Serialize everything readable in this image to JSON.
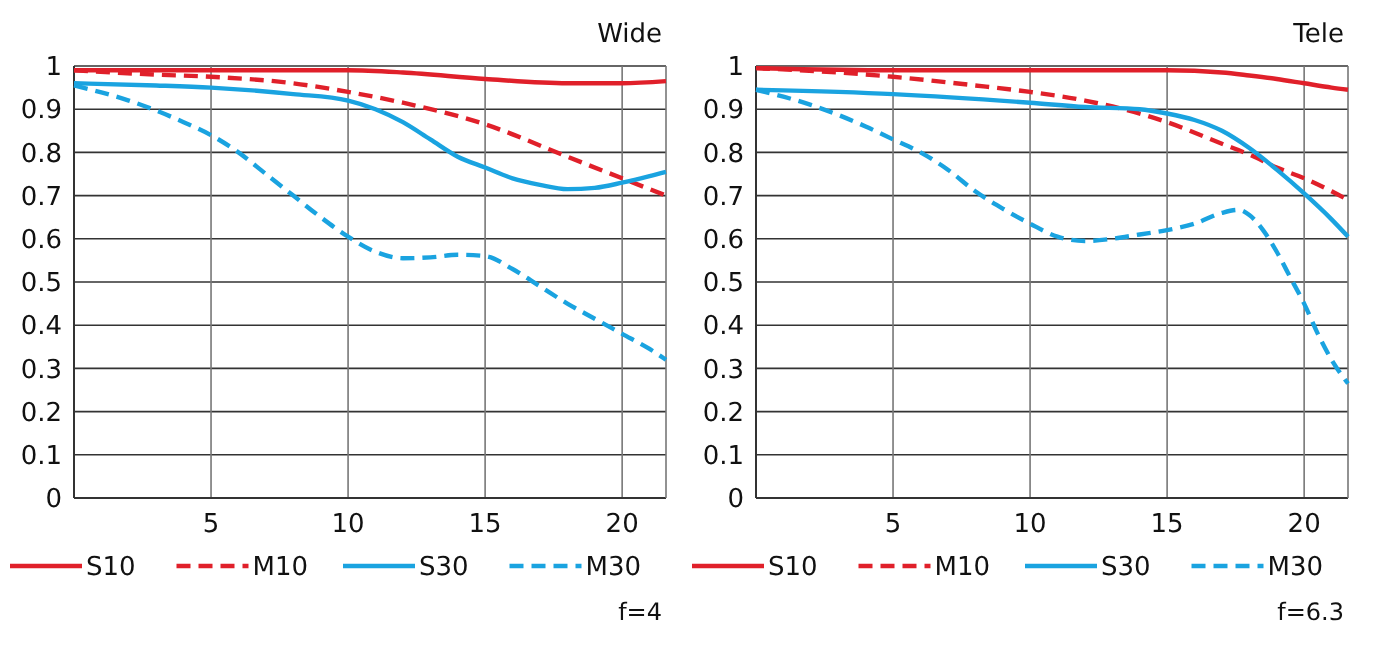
{
  "chart_data": [
    {
      "type": "line",
      "title": "Wide",
      "annotations": [
        "f=4"
      ],
      "xlim": [
        0,
        21.6
      ],
      "ylim": [
        0,
        1
      ],
      "xticks": [
        5,
        10,
        15,
        20
      ],
      "yticks": [
        0,
        0.1,
        0.2,
        0.3,
        0.4,
        0.5,
        0.6,
        0.7,
        0.8,
        0.9,
        1
      ],
      "grid": true,
      "legend": "bottom",
      "series": [
        {
          "name": "S10",
          "color": "#e0202a",
          "line_style": "solid",
          "x": [
            0,
            5,
            10,
            12,
            15,
            18,
            20,
            21.6
          ],
          "values": [
            0.99,
            0.99,
            0.99,
            0.985,
            0.97,
            0.96,
            0.96,
            0.965
          ]
        },
        {
          "name": "M10",
          "color": "#e0202a",
          "line_style": "dashed",
          "x": [
            0,
            3,
            5,
            8,
            10,
            12,
            15,
            18,
            20,
            21.6
          ],
          "values": [
            0.99,
            0.98,
            0.975,
            0.96,
            0.94,
            0.915,
            0.865,
            0.79,
            0.74,
            0.7
          ]
        },
        {
          "name": "S30",
          "color": "#1aa3e0",
          "line_style": "solid",
          "x": [
            0,
            3,
            5,
            8,
            10,
            11,
            12,
            13,
            14,
            15,
            16,
            17,
            18,
            19,
            20,
            21,
            21.6
          ],
          "values": [
            0.96,
            0.955,
            0.95,
            0.935,
            0.92,
            0.9,
            0.87,
            0.83,
            0.79,
            0.765,
            0.74,
            0.725,
            0.715,
            0.718,
            0.73,
            0.745,
            0.755
          ]
        },
        {
          "name": "M30",
          "color": "#1aa3e0",
          "line_style": "dashed",
          "x": [
            0,
            2,
            4,
            5,
            6,
            7,
            8,
            9,
            10,
            11,
            12,
            13,
            14,
            15,
            16,
            17,
            18,
            19,
            20,
            21,
            21.6
          ],
          "values": [
            0.955,
            0.92,
            0.87,
            0.84,
            0.8,
            0.75,
            0.7,
            0.65,
            0.605,
            0.57,
            0.555,
            0.557,
            0.563,
            0.56,
            0.53,
            0.49,
            0.45,
            0.415,
            0.38,
            0.345,
            0.32
          ]
        }
      ]
    },
    {
      "type": "line",
      "title": "Tele",
      "annotations": [
        "f=6.3"
      ],
      "xlim": [
        0,
        21.6
      ],
      "ylim": [
        0,
        1
      ],
      "xticks": [
        5,
        10,
        15,
        20
      ],
      "yticks": [
        0,
        0.1,
        0.2,
        0.3,
        0.4,
        0.5,
        0.6,
        0.7,
        0.8,
        0.9,
        1
      ],
      "grid": true,
      "legend": "bottom",
      "series": [
        {
          "name": "S10",
          "color": "#e0202a",
          "line_style": "solid",
          "x": [
            0,
            5,
            10,
            15,
            17,
            18,
            19,
            20,
            21,
            21.6
          ],
          "values": [
            0.995,
            0.99,
            0.99,
            0.99,
            0.985,
            0.978,
            0.97,
            0.96,
            0.95,
            0.945
          ]
        },
        {
          "name": "M10",
          "color": "#e0202a",
          "line_style": "dashed",
          "x": [
            0,
            3,
            5,
            8,
            10,
            12,
            15,
            17,
            18,
            19,
            20,
            21,
            21.6
          ],
          "values": [
            0.995,
            0.985,
            0.975,
            0.955,
            0.94,
            0.92,
            0.87,
            0.82,
            0.795,
            0.765,
            0.74,
            0.71,
            0.69
          ]
        },
        {
          "name": "S30",
          "color": "#1aa3e0",
          "line_style": "solid",
          "x": [
            0,
            5,
            10,
            12,
            14,
            15,
            16,
            17,
            18,
            19,
            20,
            21,
            21.6
          ],
          "values": [
            0.945,
            0.935,
            0.915,
            0.905,
            0.9,
            0.89,
            0.875,
            0.85,
            0.81,
            0.76,
            0.705,
            0.645,
            0.605
          ]
        },
        {
          "name": "M30",
          "color": "#1aa3e0",
          "line_style": "dashed",
          "x": [
            0,
            2,
            4,
            5,
            6,
            7,
            8,
            9,
            10,
            11,
            12,
            13,
            14,
            15,
            16,
            17,
            17.6,
            18,
            18.5,
            19,
            19.5,
            20,
            20.5,
            21,
            21.6
          ],
          "values": [
            0.945,
            0.91,
            0.86,
            0.83,
            0.8,
            0.76,
            0.71,
            0.67,
            0.635,
            0.605,
            0.595,
            0.6,
            0.61,
            0.62,
            0.635,
            0.66,
            0.667,
            0.655,
            0.62,
            0.57,
            0.51,
            0.45,
            0.38,
            0.32,
            0.265
          ]
        }
      ]
    }
  ]
}
